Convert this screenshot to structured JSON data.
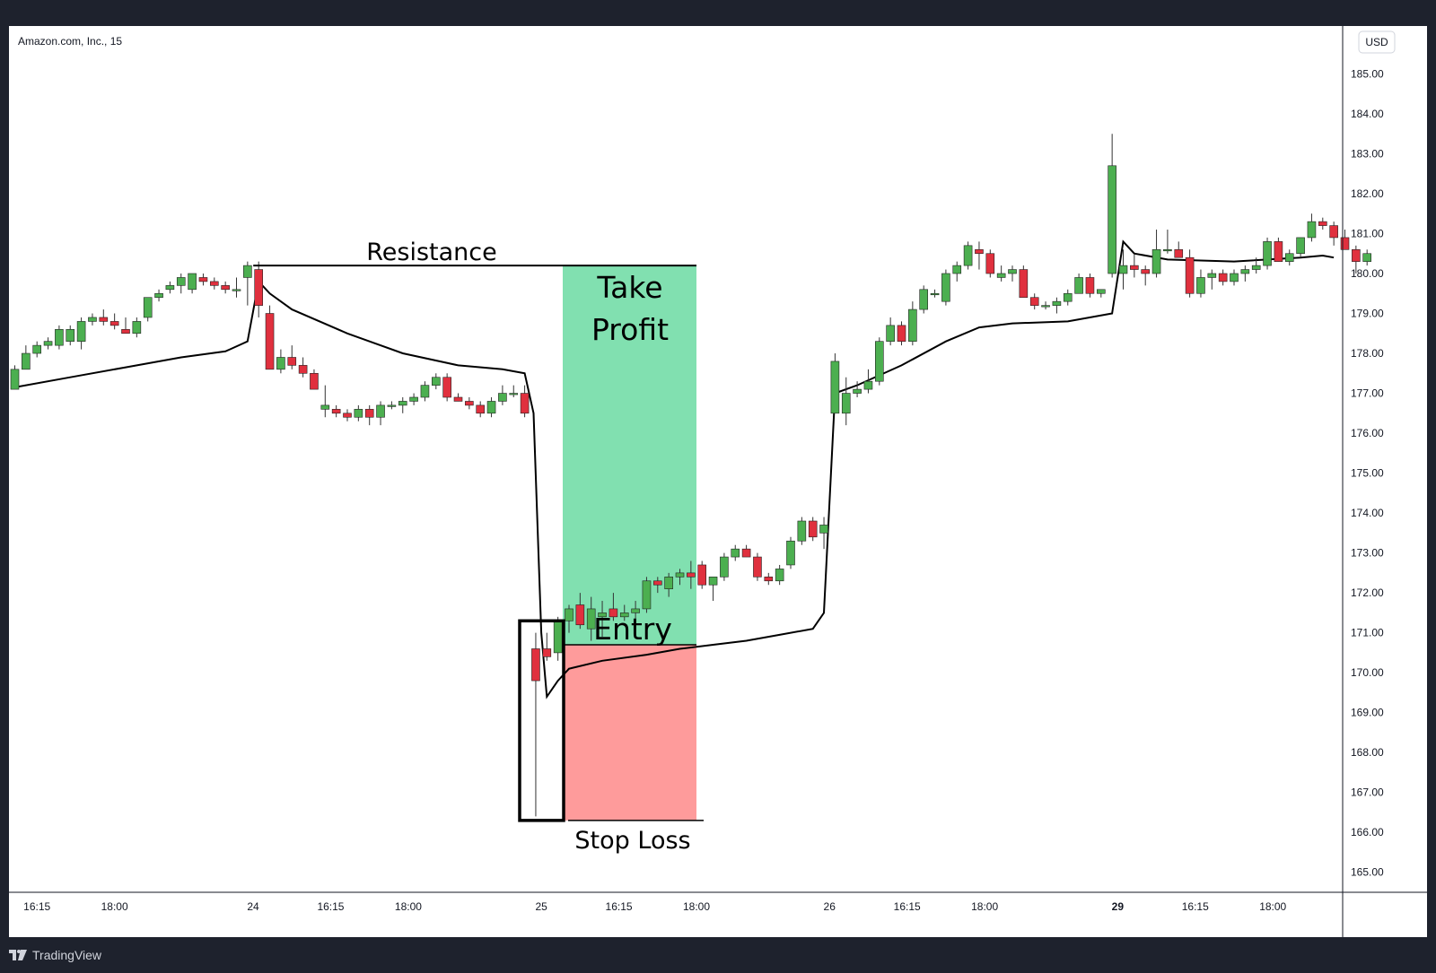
{
  "chart_data": {
    "type": "candlestick",
    "title": "Amazon.com, Inc., 15",
    "currency": "USD",
    "ylim": [
      164.5,
      186.2
    ],
    "y_ticks": [
      185,
      184,
      183,
      182,
      181,
      180,
      179,
      178,
      177,
      176,
      175,
      174,
      173,
      172,
      171,
      170,
      169,
      168,
      167,
      166,
      165
    ],
    "x_ticks": [
      {
        "label": "16:15",
        "i": 2,
        "bold": false
      },
      {
        "label": "18:00",
        "i": 9,
        "bold": false
      },
      {
        "label": "24",
        "i": 21.5,
        "bold": false
      },
      {
        "label": "16:15",
        "i": 28.5,
        "bold": false
      },
      {
        "label": "18:00",
        "i": 35.5,
        "bold": false
      },
      {
        "label": "25",
        "i": 47.5,
        "bold": false
      },
      {
        "label": "16:15",
        "i": 54.5,
        "bold": false
      },
      {
        "label": "18:00",
        "i": 61.5,
        "bold": false
      },
      {
        "label": "26",
        "i": 73.5,
        "bold": false
      },
      {
        "label": "16:15",
        "i": 80.5,
        "bold": false
      },
      {
        "label": "18:00",
        "i": 87.5,
        "bold": false
      },
      {
        "label": "29",
        "i": 99.5,
        "bold": true
      },
      {
        "label": "16:15",
        "i": 106.5,
        "bold": false
      },
      {
        "label": "18:00",
        "i": 113.5,
        "bold": false
      }
    ],
    "candles": [
      [
        177.1,
        177.7,
        177.3,
        177.6
      ],
      [
        177.6,
        178.2,
        177.6,
        178.0
      ],
      [
        178.0,
        178.3,
        177.9,
        178.2
      ],
      [
        178.2,
        178.4,
        178.1,
        178.3
      ],
      [
        178.2,
        178.7,
        178.1,
        178.6
      ],
      [
        178.3,
        178.7,
        178.2,
        178.6
      ],
      [
        178.3,
        178.9,
        178.1,
        178.8
      ],
      [
        178.8,
        179.0,
        178.7,
        178.9
      ],
      [
        178.9,
        179.1,
        178.7,
        178.8
      ],
      [
        178.8,
        179.0,
        178.6,
        178.7
      ],
      [
        178.6,
        178.9,
        178.5,
        178.5
      ],
      [
        178.5,
        178.9,
        178.4,
        178.8
      ],
      [
        178.9,
        179.3,
        178.8,
        179.4
      ],
      [
        179.4,
        179.6,
        179.3,
        179.5
      ],
      [
        179.6,
        179.8,
        179.5,
        179.7
      ],
      [
        179.7,
        180.0,
        179.5,
        179.9
      ],
      [
        179.6,
        180.0,
        179.5,
        180.0
      ],
      [
        179.9,
        180.0,
        179.7,
        179.8
      ],
      [
        179.8,
        179.9,
        179.6,
        179.7
      ],
      [
        179.7,
        179.8,
        179.5,
        179.6
      ],
      [
        179.6,
        179.9,
        179.4,
        179.6
      ],
      [
        179.9,
        180.3,
        179.2,
        180.2
      ],
      [
        180.1,
        180.3,
        178.9,
        179.2
      ],
      [
        179.0,
        179.2,
        177.6,
        177.6
      ],
      [
        177.6,
        178.1,
        177.5,
        177.9
      ],
      [
        177.9,
        178.2,
        177.6,
        177.7
      ],
      [
        177.7,
        177.9,
        177.4,
        177.5
      ],
      [
        177.5,
        177.6,
        177.1,
        177.1
      ],
      [
        176.6,
        177.2,
        176.4,
        176.7
      ],
      [
        176.6,
        176.7,
        176.4,
        176.5
      ],
      [
        176.5,
        176.6,
        176.3,
        176.4
      ],
      [
        176.4,
        176.7,
        176.3,
        176.6
      ],
      [
        176.6,
        176.7,
        176.2,
        176.4
      ],
      [
        176.4,
        176.8,
        176.2,
        176.7
      ],
      [
        176.7,
        176.8,
        176.6,
        176.7
      ],
      [
        176.7,
        176.9,
        176.5,
        176.8
      ],
      [
        176.8,
        177.0,
        176.7,
        176.9
      ],
      [
        176.9,
        177.3,
        176.8,
        177.2
      ],
      [
        177.2,
        177.5,
        177.1,
        177.4
      ],
      [
        177.4,
        177.5,
        176.8,
        176.9
      ],
      [
        176.9,
        177.0,
        176.8,
        176.8
      ],
      [
        176.8,
        176.9,
        176.6,
        176.7
      ],
      [
        176.7,
        176.8,
        176.4,
        176.5
      ],
      [
        176.5,
        176.9,
        176.4,
        176.8
      ],
      [
        176.8,
        177.2,
        176.7,
        177.0
      ],
      [
        177.0,
        177.2,
        176.9,
        177.0
      ],
      [
        177.0,
        177.2,
        176.4,
        176.5
      ],
      [
        170.6,
        171.0,
        166.4,
        169.8
      ],
      [
        170.6,
        171.0,
        170.3,
        170.4
      ],
      [
        170.5,
        171.4,
        170.3,
        171.3
      ],
      [
        171.3,
        171.7,
        171.0,
        171.6
      ],
      [
        171.7,
        172.0,
        171.1,
        171.2
      ],
      [
        171.1,
        171.9,
        170.8,
        171.6
      ],
      [
        171.4,
        171.8,
        170.9,
        171.5
      ],
      [
        171.6,
        172.0,
        171.3,
        171.4
      ],
      [
        171.4,
        171.7,
        171.3,
        171.5
      ],
      [
        171.5,
        171.8,
        171.2,
        171.6
      ],
      [
        171.6,
        172.4,
        171.5,
        172.3
      ],
      [
        172.3,
        172.4,
        172.0,
        172.2
      ],
      [
        172.1,
        172.5,
        171.9,
        172.4
      ],
      [
        172.4,
        172.6,
        172.2,
        172.5
      ],
      [
        172.5,
        172.8,
        172.1,
        172.4
      ],
      [
        172.7,
        172.8,
        172.1,
        172.2
      ],
      [
        172.2,
        172.4,
        171.8,
        172.4
      ],
      [
        172.4,
        173.0,
        172.3,
        172.9
      ],
      [
        172.9,
        173.2,
        172.8,
        173.1
      ],
      [
        173.1,
        173.2,
        172.9,
        172.9
      ],
      [
        172.9,
        173.0,
        172.3,
        172.4
      ],
      [
        172.4,
        172.5,
        172.2,
        172.3
      ],
      [
        172.3,
        172.7,
        172.2,
        172.6
      ],
      [
        172.7,
        173.4,
        172.6,
        173.3
      ],
      [
        173.3,
        173.9,
        173.2,
        173.8
      ],
      [
        173.8,
        173.9,
        173.3,
        173.4
      ],
      [
        173.5,
        173.9,
        173.1,
        173.7
      ],
      [
        176.5,
        178.0,
        176.5,
        177.8
      ],
      [
        176.5,
        177.4,
        176.2,
        177.0
      ],
      [
        177.0,
        177.3,
        176.9,
        177.1
      ],
      [
        177.1,
        177.6,
        177.0,
        177.3
      ],
      [
        177.3,
        178.4,
        177.2,
        178.3
      ],
      [
        178.3,
        178.9,
        178.2,
        178.7
      ],
      [
        178.7,
        178.8,
        178.2,
        178.3
      ],
      [
        178.3,
        179.3,
        178.2,
        179.1
      ],
      [
        179.1,
        179.7,
        179.0,
        179.6
      ],
      [
        179.5,
        179.6,
        179.4,
        179.5
      ],
      [
        179.3,
        180.1,
        179.2,
        180.0
      ],
      [
        180.0,
        180.3,
        179.8,
        180.2
      ],
      [
        180.2,
        180.8,
        180.1,
        180.7
      ],
      [
        180.6,
        180.8,
        180.1,
        180.5
      ],
      [
        180.5,
        180.6,
        179.9,
        180.0
      ],
      [
        179.9,
        180.2,
        179.8,
        180.0
      ],
      [
        180.0,
        180.2,
        179.8,
        180.1
      ],
      [
        180.1,
        180.2,
        179.4,
        179.4
      ],
      [
        179.4,
        179.5,
        179.1,
        179.2
      ],
      [
        179.2,
        179.3,
        179.1,
        179.2
      ],
      [
        179.2,
        179.4,
        179.0,
        179.3
      ],
      [
        179.3,
        179.6,
        179.2,
        179.5
      ],
      [
        179.5,
        180.0,
        179.5,
        179.9
      ],
      [
        179.9,
        180.0,
        179.4,
        179.5
      ],
      [
        179.5,
        179.6,
        179.4,
        179.6
      ],
      [
        180.0,
        183.5,
        179.9,
        182.7
      ],
      [
        180.0,
        180.6,
        179.6,
        180.2
      ],
      [
        180.2,
        180.5,
        179.9,
        180.1
      ],
      [
        180.1,
        180.2,
        179.7,
        180.0
      ],
      [
        180.0,
        181.1,
        179.9,
        180.6
      ],
      [
        180.6,
        181.1,
        180.5,
        180.6
      ],
      [
        180.6,
        180.8,
        180.4,
        180.4
      ],
      [
        180.4,
        180.6,
        179.4,
        179.5
      ],
      [
        179.5,
        180.1,
        179.4,
        179.9
      ],
      [
        179.9,
        180.1,
        179.6,
        180.0
      ],
      [
        180.0,
        180.1,
        179.7,
        179.8
      ],
      [
        179.8,
        180.1,
        179.7,
        180.0
      ],
      [
        180.0,
        180.2,
        179.8,
        180.1
      ],
      [
        180.1,
        180.4,
        180.0,
        180.2
      ],
      [
        180.2,
        180.9,
        180.1,
        180.8
      ],
      [
        180.8,
        180.9,
        180.3,
        180.3
      ],
      [
        180.3,
        180.6,
        180.2,
        180.5
      ],
      [
        180.5,
        180.9,
        180.4,
        180.9
      ],
      [
        180.9,
        181.5,
        180.8,
        181.3
      ],
      [
        181.3,
        181.4,
        181.1,
        181.2
      ],
      [
        181.2,
        181.3,
        180.7,
        180.9
      ],
      [
        180.9,
        181.1,
        180.6,
        180.6
      ],
      [
        180.6,
        180.7,
        180.0,
        180.3
      ],
      [
        180.3,
        180.6,
        180.2,
        180.5
      ]
    ],
    "vwap": [
      [
        0,
        177.15
      ],
      [
        5,
        177.4
      ],
      [
        10,
        177.65
      ],
      [
        15,
        177.9
      ],
      [
        19,
        178.05
      ],
      [
        21,
        178.3
      ],
      [
        22,
        179.8
      ],
      [
        23,
        179.5
      ],
      [
        25,
        179.1
      ],
      [
        30,
        178.5
      ],
      [
        35,
        178.0
      ],
      [
        40,
        177.7
      ],
      [
        44,
        177.6
      ],
      [
        46,
        177.5
      ],
      [
        46.8,
        176.5
      ],
      [
        47.5,
        171.0
      ],
      [
        48,
        169.4
      ],
      [
        49,
        169.8
      ],
      [
        50,
        170.1
      ],
      [
        53,
        170.3
      ],
      [
        57,
        170.45
      ],
      [
        60,
        170.6
      ],
      [
        63,
        170.7
      ],
      [
        66,
        170.8
      ],
      [
        69,
        170.95
      ],
      [
        72,
        171.1
      ],
      [
        73,
        171.5
      ],
      [
        74,
        177.0
      ],
      [
        76,
        177.2
      ],
      [
        80,
        177.7
      ],
      [
        84,
        178.3
      ],
      [
        87,
        178.65
      ],
      [
        90,
        178.75
      ],
      [
        95,
        178.8
      ],
      [
        99,
        179.0
      ],
      [
        100,
        180.8
      ],
      [
        101,
        180.5
      ],
      [
        104,
        180.35
      ],
      [
        110,
        180.3
      ],
      [
        116,
        180.4
      ],
      [
        118,
        180.45
      ],
      [
        119,
        180.4
      ]
    ],
    "annotations": {
      "resistance_label": "Resistance",
      "take_profit_label_1": "Take",
      "take_profit_label_2": "Profit",
      "entry_label": "Entry",
      "stop_loss_label": "Stop Loss",
      "resistance_price": 180.2,
      "entry_price": 170.7,
      "stop_loss_price": 166.3,
      "take_profit_price": 180.2
    },
    "colors": {
      "up": "#4caf50",
      "down": "#e0303e",
      "take_profit_zone": "#81e0b0",
      "stop_loss_zone": "#fe9b9b",
      "vwap": "#000000",
      "background": "#ffffff",
      "frame": "#1e222d"
    }
  },
  "footer": {
    "brand": "TradingView"
  }
}
